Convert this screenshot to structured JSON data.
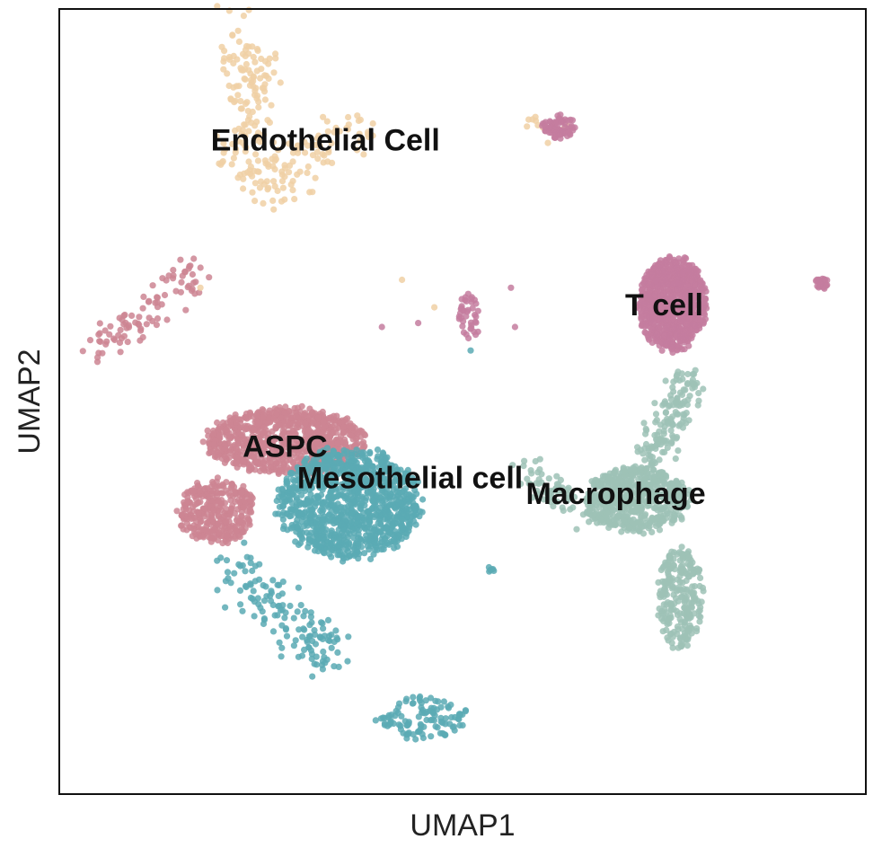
{
  "chart_data": {
    "type": "scatter",
    "title": "",
    "xlabel": "UMAP1",
    "ylabel": "UMAP2",
    "xlim": [
      0,
      100
    ],
    "ylim": [
      0,
      100
    ],
    "grid": false,
    "legend": "none",
    "colors": {
      "ASPC": "#cc8593",
      "Mesothelial cell": "#5aaab4",
      "Macrophage": "#9dc2b6",
      "T cell": "#c47c9f",
      "Endothelial Cell": "#f0d0a4"
    },
    "cluster_labels": [
      {
        "text": "Endothelial Cell",
        "x": 33,
        "y": 83
      },
      {
        "text": "T cell",
        "x": 75,
        "y": 62
      },
      {
        "text": "ASPC",
        "x": 28,
        "y": 44
      },
      {
        "text": "Mesothelial cell",
        "x": 43.5,
        "y": 40
      },
      {
        "text": "Macrophage",
        "x": 69,
        "y": 38
      }
    ],
    "clusters": [
      {
        "name": "Endothelial Cell",
        "type": "poly",
        "n": 220,
        "jitter": 1.6,
        "points": [
          [
            22,
            97
          ],
          [
            23,
            91
          ],
          [
            24,
            86
          ],
          [
            22,
            81
          ],
          [
            25,
            77
          ],
          [
            30,
            81
          ],
          [
            35,
            84
          ],
          [
            40,
            84
          ]
        ]
      },
      {
        "name": "Endothelial Cell",
        "type": "blob",
        "n": 25,
        "cx": 24.5,
        "cy": 92,
        "rx": 3.5,
        "ry": 3.5
      },
      {
        "name": "Endothelial Cell",
        "type": "poly",
        "n": 12,
        "jitter": 0.8,
        "points": [
          [
            58,
            85
          ],
          [
            62,
            85
          ]
        ]
      },
      {
        "name": "T cell",
        "type": "blob",
        "n": 70,
        "cx": 62,
        "cy": 85,
        "rx": 2.2,
        "ry": 1.6
      },
      {
        "name": "T cell",
        "type": "blob",
        "n": 900,
        "cx": 76,
        "cy": 62.5,
        "rx": 4.6,
        "ry": 6.3
      },
      {
        "name": "T cell",
        "type": "blob",
        "n": 30,
        "cx": 94.5,
        "cy": 65,
        "rx": 0.9,
        "ry": 0.8
      },
      {
        "name": "ASPC",
        "type": "poly",
        "n": 90,
        "jitter": 1.3,
        "points": [
          [
            5,
            57
          ],
          [
            10,
            60
          ],
          [
            15,
            65
          ],
          [
            17,
            67
          ]
        ]
      },
      {
        "name": "T cell",
        "type": "blob",
        "n": 40,
        "cx": 51,
        "cy": 61,
        "rx": 1.6,
        "ry": 3.2
      },
      {
        "name": "ASPC",
        "type": "blob",
        "n": 900,
        "cx": 28,
        "cy": 45,
        "rx": 10.5,
        "ry": 4.5
      },
      {
        "name": "ASPC",
        "type": "blob",
        "n": 350,
        "cx": 19.5,
        "cy": 36,
        "rx": 5,
        "ry": 4.5
      },
      {
        "name": "Mesothelial cell",
        "type": "blob",
        "n": 1100,
        "cx": 36,
        "cy": 37,
        "rx": 9.5,
        "ry": 7.5
      },
      {
        "name": "Mesothelial cell",
        "type": "poly",
        "n": 140,
        "jitter": 1.6,
        "points": [
          [
            22,
            29
          ],
          [
            25,
            25
          ],
          [
            29,
            22
          ],
          [
            32,
            19
          ],
          [
            34,
            17
          ]
        ]
      },
      {
        "name": "Mesothelial cell",
        "type": "blob",
        "n": 110,
        "cx": 45,
        "cy": 9.5,
        "rx": 6,
        "ry": 3.2
      },
      {
        "name": "Mesothelial cell",
        "type": "blob",
        "n": 6,
        "cx": 53.5,
        "cy": 28.5,
        "rx": 0.5,
        "ry": 0.5
      },
      {
        "name": "Macrophage",
        "type": "blob",
        "n": 600,
        "cx": 71.5,
        "cy": 37.5,
        "rx": 7,
        "ry": 4.5
      },
      {
        "name": "Macrophage",
        "type": "poly",
        "n": 150,
        "jitter": 1.2,
        "points": [
          [
            73,
            42
          ],
          [
            76,
            48
          ],
          [
            78,
            53
          ]
        ]
      },
      {
        "name": "Macrophage",
        "type": "poly",
        "n": 60,
        "jitter": 1.2,
        "points": [
          [
            58,
            41
          ],
          [
            62,
            38
          ],
          [
            65,
            36
          ]
        ]
      },
      {
        "name": "Macrophage",
        "type": "blob",
        "n": 250,
        "cx": 77,
        "cy": 25,
        "rx": 3,
        "ry": 7
      }
    ],
    "scattered_points": [
      {
        "name": "Endothelial Cell",
        "x": 42.5,
        "y": 65.5
      },
      {
        "name": "Endothelial Cell",
        "x": 46.5,
        "y": 62
      },
      {
        "name": "Endothelial Cell",
        "x": 17.5,
        "y": 64.5
      },
      {
        "name": "T cell",
        "x": 40,
        "y": 59.5
      },
      {
        "name": "T cell",
        "x": 44.5,
        "y": 60
      },
      {
        "name": "T cell",
        "x": 56.5,
        "y": 59.5
      },
      {
        "name": "T cell",
        "x": 56,
        "y": 64.5
      },
      {
        "name": "Mesothelial cell",
        "x": 51,
        "y": 56.5
      }
    ]
  }
}
